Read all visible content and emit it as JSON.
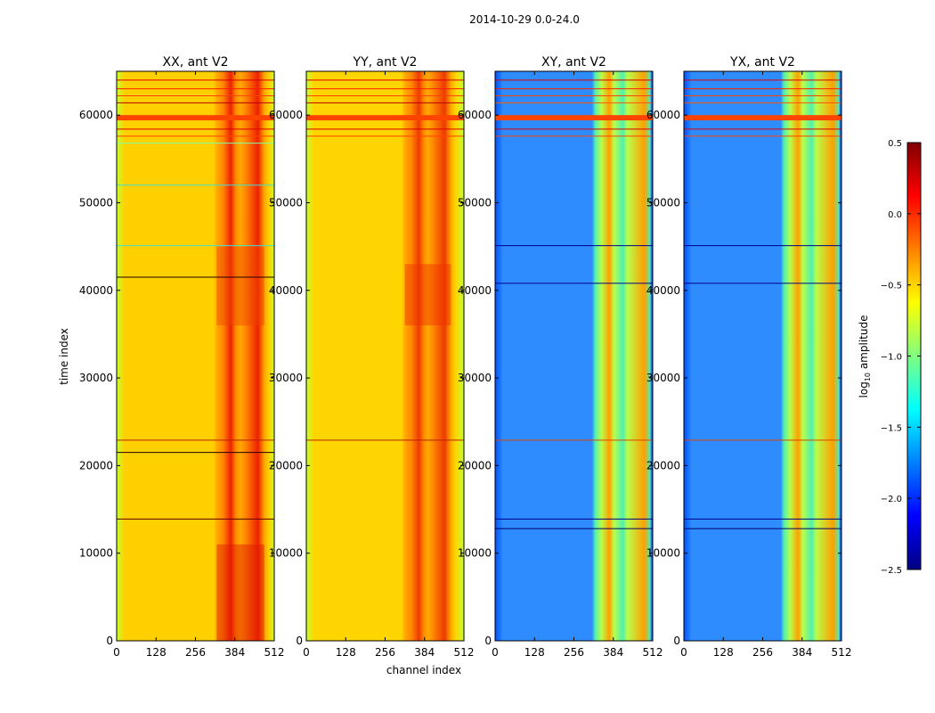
{
  "chart_data": {
    "type": "heatmap",
    "suptitle": "2014-10-29 0.0-24.0",
    "xlabel": "channel index",
    "ylabel": "time index",
    "xlim": [
      0,
      512
    ],
    "ylim": [
      0,
      65000
    ],
    "x_ticks": [
      0,
      128,
      256,
      384,
      512
    ],
    "y_ticks": [
      0,
      10000,
      20000,
      30000,
      40000,
      50000,
      60000
    ],
    "panels": [
      {
        "title": "XX, ant V2",
        "background": "#ffd000",
        "edge_color": "#c4ff33",
        "band_center_color": "#ff8800",
        "band_edge_color": "#ffaa00",
        "band_dark_color": "#ee2000",
        "band_channels": [
          325,
          480
        ],
        "hot_rows": [
          {
            "y0": 0,
            "y1": 11000,
            "color": "#dd1800"
          },
          {
            "y0": 36000,
            "y1": 45000,
            "color": "#ee4400"
          }
        ],
        "flag_lines": [
          {
            "y": 13900,
            "color": "#660000"
          },
          {
            "y": 21500,
            "color": "#220000"
          },
          {
            "y": 22900,
            "color": "#bb2200"
          },
          {
            "y": 41500,
            "color": "#220000"
          },
          {
            "y": 45100,
            "color": "#40e0d0"
          },
          {
            "y": 52000,
            "color": "#40e0d0"
          },
          {
            "y": 56800,
            "color": "#80ffa0"
          },
          {
            "y": 57600,
            "color": "#ff4400"
          },
          {
            "y": 58400,
            "color": "#dd0000"
          },
          {
            "y": 61400,
            "color": "#bb0000"
          },
          {
            "y": 62200,
            "color": "#ff4400"
          },
          {
            "y": 63000,
            "color": "#ff2200"
          },
          {
            "y": 64000,
            "color": "#dd0000"
          }
        ],
        "stripe": {
          "y0": 59400,
          "y1": 60000,
          "color": "#ff4400"
        }
      },
      {
        "title": "YY, ant V2",
        "background": "#ffd500",
        "edge_color": "#c4ff33",
        "band_center_color": "#ff8a00",
        "band_edge_color": "#ffaa00",
        "band_dark_color": "#ee3a00",
        "band_channels": [
          320,
          470
        ],
        "hot_rows": [
          {
            "y0": 36000,
            "y1": 43000,
            "color": "#ee3000"
          }
        ],
        "flag_lines": [
          {
            "y": 22900,
            "color": "#bb2200"
          },
          {
            "y": 57600,
            "color": "#ff4400"
          },
          {
            "y": 58400,
            "color": "#dd0000"
          },
          {
            "y": 61400,
            "color": "#bb0000"
          },
          {
            "y": 62200,
            "color": "#ff4400"
          },
          {
            "y": 63000,
            "color": "#ff2200"
          },
          {
            "y": 64000,
            "color": "#dd0000"
          }
        ],
        "stripe": {
          "y0": 59400,
          "y1": 60000,
          "color": "#ff4400"
        }
      },
      {
        "title": "XY, ant V2",
        "background": "#2f8cff",
        "edge_color": "#0050ff",
        "band_center_color": "#b8ff4a",
        "band_edge_color": "#50f0b0",
        "band_dark_color": "#ffa000",
        "band_channels": [
          325,
          505
        ],
        "hot_rows": [],
        "flag_lines": [
          {
            "y": 12800,
            "color": "#000066"
          },
          {
            "y": 13900,
            "color": "#000088"
          },
          {
            "y": 22900,
            "color": "#dd4400"
          },
          {
            "y": 40800,
            "color": "#000088"
          },
          {
            "y": 45100,
            "color": "#000088"
          },
          {
            "y": 57600,
            "color": "#ff4400"
          },
          {
            "y": 58400,
            "color": "#dd0000"
          },
          {
            "y": 61400,
            "color": "#ff5500"
          },
          {
            "y": 62200,
            "color": "#ff4400"
          },
          {
            "y": 63000,
            "color": "#ff2200"
          },
          {
            "y": 64000,
            "color": "#dd0000"
          }
        ],
        "stripe": {
          "y0": 59400,
          "y1": 60000,
          "color": "#ff4400"
        }
      },
      {
        "title": "YX, ant V2",
        "background": "#2f8cff",
        "edge_color": "#0050ff",
        "band_center_color": "#b8ff4a",
        "band_edge_color": "#50f0b0",
        "band_dark_color": "#ffa000",
        "band_channels": [
          325,
          505
        ],
        "hot_rows": [],
        "flag_lines": [
          {
            "y": 12800,
            "color": "#000066"
          },
          {
            "y": 13900,
            "color": "#000088"
          },
          {
            "y": 22900,
            "color": "#dd4400"
          },
          {
            "y": 40800,
            "color": "#000088"
          },
          {
            "y": 45100,
            "color": "#000088"
          },
          {
            "y": 57600,
            "color": "#ff4400"
          },
          {
            "y": 58400,
            "color": "#dd0000"
          },
          {
            "y": 61400,
            "color": "#ff5500"
          },
          {
            "y": 62200,
            "color": "#ff4400"
          },
          {
            "y": 63000,
            "color": "#ff2200"
          },
          {
            "y": 64000,
            "color": "#dd0000"
          }
        ],
        "stripe": {
          "y0": 59400,
          "y1": 60000,
          "color": "#ff4400"
        }
      }
    ],
    "colorbar": {
      "label": "log",
      "label_sub": "10",
      "label_suffix": " amplitude",
      "range": [
        -2.5,
        0.5
      ],
      "ticks": [
        0.5,
        0.0,
        -0.5,
        -1.0,
        -1.5,
        -2.0,
        -2.5
      ],
      "tick_labels": [
        "0.5",
        "0.0",
        "−0.5",
        "−1.0",
        "−1.5",
        "−2.0",
        "−2.5"
      ],
      "colormap": "jet",
      "colormap_stops": [
        "#000080",
        "#0000ff",
        "#0080ff",
        "#00ffff",
        "#80ff80",
        "#ffff00",
        "#ff8000",
        "#ff0000",
        "#800000"
      ]
    }
  }
}
